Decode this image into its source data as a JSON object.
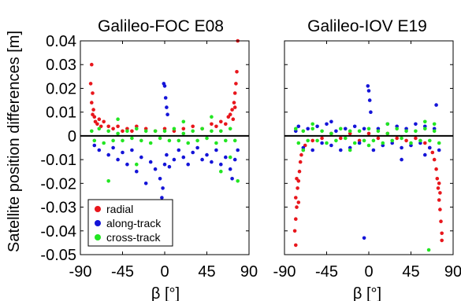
{
  "ylabel": "Satellite position differences [m]",
  "colors": {
    "radial": "#e8161c",
    "along_track": "#1414d8",
    "cross_track": "#22e622",
    "axis": "#000000"
  },
  "legend": {
    "placement": "bottom-left",
    "entries": [
      {
        "key": "radial",
        "label": "radial"
      },
      {
        "key": "along_track",
        "label": "along-track"
      },
      {
        "key": "cross_track",
        "label": "cross-track"
      }
    ]
  },
  "chart_data": [
    {
      "type": "scatter",
      "title": "Galileo-FOC E08",
      "xlabel": "β [°]",
      "ylabel": "Satellite position differences [m]",
      "xlim": [
        -90,
        90
      ],
      "ylim": [
        -0.05,
        0.04
      ],
      "xticks": [
        "-90",
        "-45",
        "0",
        "45",
        "90"
      ],
      "yticks": [
        "0.04",
        "0.03",
        "0.02",
        "0.01",
        "0",
        "-0.01",
        "-0.02",
        "-0.03",
        "-0.04",
        "-0.05"
      ],
      "zero_line": true,
      "series": [
        {
          "name": "radial",
          "points": [
            [
              -78,
              0.03
            ],
            [
              -79,
              0.022
            ],
            [
              -77,
              0.018
            ],
            [
              -78,
              0.014
            ],
            [
              -76,
              0.011
            ],
            [
              -77,
              0.009
            ],
            [
              -75,
              0.008
            ],
            [
              -74,
              0.006
            ],
            [
              -72,
              0.005
            ],
            [
              -70,
              0.007
            ],
            [
              -68,
              0.004
            ],
            [
              -65,
              0.006
            ],
            [
              -60,
              0.004
            ],
            [
              -55,
              0.003
            ],
            [
              -50,
              0.004
            ],
            [
              -45,
              0.002
            ],
            [
              -40,
              0.003
            ],
            [
              -35,
              0.002
            ],
            [
              -30,
              0.004
            ],
            [
              -20,
              0.003
            ],
            [
              -10,
              0.002
            ],
            [
              0,
              0.003
            ],
            [
              10,
              0.002
            ],
            [
              20,
              0.003
            ],
            [
              30,
              0.004
            ],
            [
              40,
              0.003
            ],
            [
              50,
              0.005
            ],
            [
              55,
              0.004
            ],
            [
              60,
              0.006
            ],
            [
              65,
              0.005
            ],
            [
              68,
              0.008
            ],
            [
              70,
              0.009
            ],
            [
              72,
              0.011
            ],
            [
              74,
              0.014
            ],
            [
              75,
              0.018
            ],
            [
              76,
              0.022
            ],
            [
              77,
              0.027
            ],
            [
              78,
              0.04
            ],
            [
              75,
              0.012
            ],
            [
              73,
              0.007
            ]
          ]
        },
        {
          "name": "along-track",
          "points": [
            [
              -75,
              -0.004
            ],
            [
              -70,
              -0.006
            ],
            [
              -60,
              -0.008
            ],
            [
              -55,
              -0.005
            ],
            [
              -50,
              -0.01
            ],
            [
              -45,
              -0.007
            ],
            [
              -40,
              -0.012
            ],
            [
              -35,
              -0.006
            ],
            [
              -30,
              -0.015
            ],
            [
              -25,
              -0.009
            ],
            [
              -20,
              -0.02
            ],
            [
              -15,
              -0.011
            ],
            [
              -10,
              -0.014
            ],
            [
              -5,
              -0.018
            ],
            [
              -3,
              -0.026
            ],
            [
              -2,
              -0.022
            ],
            [
              0,
              -0.012
            ],
            [
              2,
              -0.008
            ],
            [
              -1,
              0.022
            ],
            [
              0,
              0.021
            ],
            [
              1,
              0.016
            ],
            [
              2,
              0.012
            ],
            [
              3,
              0.009
            ],
            [
              5,
              -0.013
            ],
            [
              10,
              -0.01
            ],
            [
              15,
              -0.006
            ],
            [
              20,
              -0.009
            ],
            [
              25,
              -0.012
            ],
            [
              30,
              -0.007
            ],
            [
              35,
              -0.005
            ],
            [
              40,
              -0.01
            ],
            [
              45,
              -0.008
            ],
            [
              50,
              -0.011
            ],
            [
              55,
              -0.006
            ],
            [
              60,
              -0.012
            ],
            [
              65,
              -0.009
            ],
            [
              70,
              -0.014
            ],
            [
              72,
              -0.018
            ],
            [
              75,
              -0.01
            ],
            [
              78,
              -0.006
            ]
          ]
        },
        {
          "name": "cross-track",
          "points": [
            [
              -78,
              0.002
            ],
            [
              -75,
              -0.002
            ],
            [
              -70,
              0.003
            ],
            [
              -65,
              -0.003
            ],
            [
              -60,
              0.002
            ],
            [
              -55,
              -0.002
            ],
            [
              -50,
              0.001
            ],
            [
              -45,
              -0.002
            ],
            [
              -40,
              0.002
            ],
            [
              -35,
              -0.001
            ],
            [
              -30,
              0.003
            ],
            [
              -25,
              -0.002
            ],
            [
              -20,
              0.002
            ],
            [
              -15,
              -0.003
            ],
            [
              -10,
              0.002
            ],
            [
              -5,
              -0.001
            ],
            [
              0,
              0.002
            ],
            [
              5,
              -0.002
            ],
            [
              10,
              0.003
            ],
            [
              15,
              -0.002
            ],
            [
              20,
              0.001
            ],
            [
              25,
              -0.003
            ],
            [
              30,
              0.002
            ],
            [
              35,
              -0.002
            ],
            [
              40,
              0.003
            ],
            [
              45,
              -0.001
            ],
            [
              50,
              0.002
            ],
            [
              55,
              -0.003
            ],
            [
              60,
              0.002
            ],
            [
              65,
              -0.002
            ],
            [
              70,
              0.003
            ],
            [
              75,
              -0.002
            ],
            [
              -60,
              -0.019
            ],
            [
              60,
              -0.015
            ],
            [
              78,
              -0.019
            ],
            [
              -30,
              -0.012
            ],
            [
              20,
              0.006
            ],
            [
              -50,
              0.007
            ],
            [
              50,
              0.008
            ],
            [
              70,
              -0.009
            ]
          ]
        }
      ]
    },
    {
      "type": "scatter",
      "title": "Galileo-IOV E19",
      "xlabel": "β [°]",
      "xlim": [
        -90,
        90
      ],
      "ylim": [
        -0.05,
        0.04
      ],
      "xticks": [
        "-90",
        "-45",
        "0",
        "45",
        "90"
      ],
      "zero_line": true,
      "series": [
        {
          "name": "radial",
          "points": [
            [
              -78,
              -0.046
            ],
            [
              -79,
              -0.04
            ],
            [
              -78,
              -0.035
            ],
            [
              -77,
              -0.03
            ],
            [
              -78,
              -0.026
            ],
            [
              -76,
              -0.022
            ],
            [
              -75,
              -0.019
            ],
            [
              -74,
              -0.015
            ],
            [
              -73,
              -0.011
            ],
            [
              -72,
              -0.008
            ],
            [
              -70,
              -0.006
            ],
            [
              -68,
              -0.004
            ],
            [
              -60,
              -0.002
            ],
            [
              -50,
              -0.001
            ],
            [
              -40,
              0.001
            ],
            [
              -30,
              -0.001
            ],
            [
              -20,
              0.001
            ],
            [
              -10,
              -0.002
            ],
            [
              0,
              0.001
            ],
            [
              10,
              -0.001
            ],
            [
              20,
              0.001
            ],
            [
              30,
              -0.001
            ],
            [
              40,
              -0.002
            ],
            [
              50,
              -0.001
            ],
            [
              60,
              -0.003
            ],
            [
              65,
              -0.005
            ],
            [
              68,
              -0.007
            ],
            [
              70,
              -0.01
            ],
            [
              72,
              -0.014
            ],
            [
              73,
              -0.018
            ],
            [
              74,
              -0.022
            ],
            [
              75,
              -0.027
            ],
            [
              76,
              -0.031
            ],
            [
              77,
              -0.036
            ],
            [
              78,
              -0.041
            ],
            [
              78,
              -0.044
            ],
            [
              -75,
              -0.028
            ],
            [
              -77,
              -0.018
            ],
            [
              75,
              -0.02
            ],
            [
              76,
              -0.024
            ]
          ]
        },
        {
          "name": "along-track",
          "points": [
            [
              -75,
              0.004
            ],
            [
              -70,
              -0.005
            ],
            [
              -65,
              0.003
            ],
            [
              -60,
              -0.006
            ],
            [
              -55,
              0.004
            ],
            [
              -50,
              -0.003
            ],
            [
              -45,
              0.005
            ],
            [
              -40,
              -0.004
            ],
            [
              -35,
              0.002
            ],
            [
              -30,
              -0.006
            ],
            [
              -25,
              0.003
            ],
            [
              -20,
              -0.005
            ],
            [
              -15,
              0.004
            ],
            [
              -10,
              -0.003
            ],
            [
              -5,
              0.003
            ],
            [
              -1,
              0.021
            ],
            [
              0,
              0.019
            ],
            [
              1,
              0.015
            ],
            [
              2,
              0.01
            ],
            [
              -5,
              -0.043
            ],
            [
              5,
              -0.006
            ],
            [
              10,
              0.003
            ],
            [
              15,
              -0.004
            ],
            [
              20,
              0.005
            ],
            [
              25,
              -0.003
            ],
            [
              30,
              0.004
            ],
            [
              35,
              -0.005
            ],
            [
              40,
              0.003
            ],
            [
              45,
              -0.004
            ],
            [
              50,
              0.005
            ],
            [
              55,
              -0.003
            ],
            [
              60,
              0.004
            ],
            [
              65,
              -0.005
            ],
            [
              70,
              0.003
            ],
            [
              72,
              0.013
            ],
            [
              75,
              -0.006
            ],
            [
              -78,
              0.002
            ],
            [
              35,
              -0.01
            ],
            [
              -40,
              0.006
            ],
            [
              60,
              -0.008
            ]
          ]
        },
        {
          "name": "cross-track",
          "points": [
            [
              -78,
              0.003
            ],
            [
              -75,
              -0.003
            ],
            [
              -70,
              0.002
            ],
            [
              -65,
              -0.002
            ],
            [
              -60,
              0.003
            ],
            [
              -55,
              -0.002
            ],
            [
              -50,
              0.002
            ],
            [
              -45,
              -0.003
            ],
            [
              -40,
              0.001
            ],
            [
              -35,
              -0.002
            ],
            [
              -30,
              0.003
            ],
            [
              -25,
              -0.001
            ],
            [
              -20,
              0.002
            ],
            [
              -15,
              -0.003
            ],
            [
              -10,
              0.002
            ],
            [
              -5,
              -0.002
            ],
            [
              0,
              0.003
            ],
            [
              5,
              -0.002
            ],
            [
              10,
              0.002
            ],
            [
              15,
              -0.003
            ],
            [
              20,
              0.001
            ],
            [
              25,
              -0.002
            ],
            [
              30,
              0.003
            ],
            [
              35,
              -0.001
            ],
            [
              40,
              0.002
            ],
            [
              45,
              -0.003
            ],
            [
              50,
              0.002
            ],
            [
              55,
              -0.002
            ],
            [
              60,
              0.003
            ],
            [
              65,
              -0.002
            ],
            [
              70,
              0.002
            ],
            [
              75,
              -0.003
            ],
            [
              64,
              -0.048
            ],
            [
              -60,
              0.005
            ],
            [
              60,
              0.006
            ],
            [
              -20,
              -0.006
            ],
            [
              20,
              0.005
            ],
            [
              -70,
              -0.006
            ],
            [
              70,
              0.005
            ],
            [
              0,
              -0.004
            ]
          ]
        }
      ]
    }
  ]
}
